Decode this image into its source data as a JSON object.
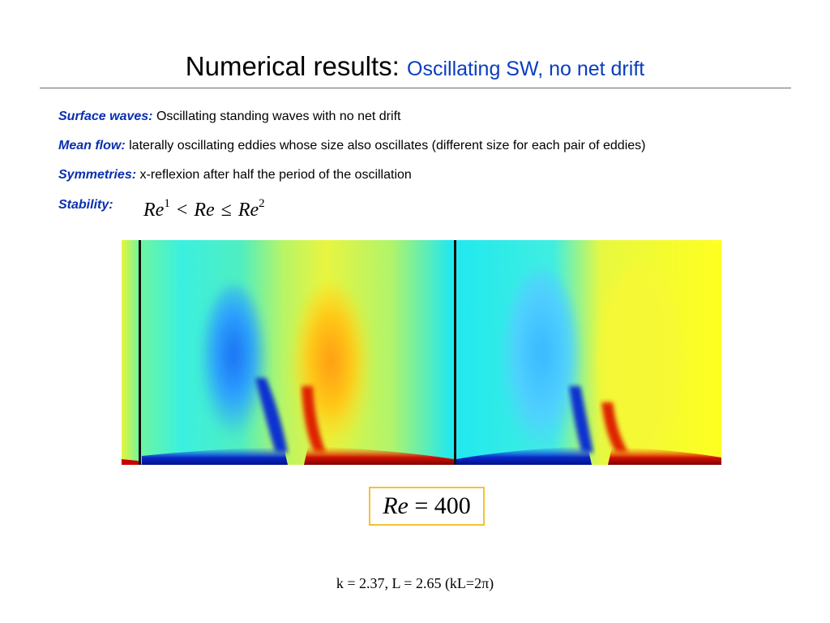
{
  "title": {
    "main": "Numerical results:",
    "sub": "Oscillating SW, no net drift"
  },
  "items": [
    {
      "label": "Surface waves:",
      "text": "Oscillating standing waves with no net drift"
    },
    {
      "label": "Mean flow:",
      "text": "laterally oscillating eddies whose size also oscillates (different size for each pair of eddies)"
    },
    {
      "label": "Symmetries:",
      "text": "x-reflexion after half the period of the oscillation"
    },
    {
      "label": "Stability:",
      "text": ""
    }
  ],
  "stability_formula": {
    "lhs": "Re",
    "lhs_sup": "1",
    "op1": "<",
    "mid": "Re",
    "op2": "≤",
    "rhs": "Re",
    "rhs_sup": "2"
  },
  "figure": {
    "description_colors": [
      "#0a1fb0",
      "#1e90ff",
      "#00e5ff",
      "#c8f55a",
      "#ffff1a",
      "#ffaa10",
      "#c00000"
    ]
  },
  "re_box": {
    "var": "Re",
    "eq": "=",
    "value": "400"
  },
  "footer": "k = 2.37, L = 2.65 (kL=2π)"
}
